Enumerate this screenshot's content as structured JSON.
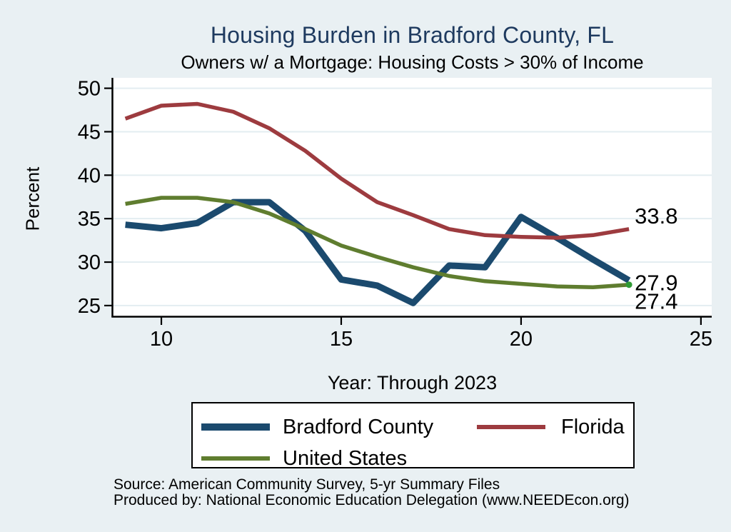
{
  "title": "Housing Burden in Bradford County, FL",
  "subtitle": "Owners w/ a Mortgage: Housing Costs > 30% of Income",
  "axis_titles": {
    "y": "Percent",
    "x": "Year: Through 2023"
  },
  "footer": {
    "source": "Source: American Community Survey, 5-yr Summary Files",
    "produced_by": "Produced by: National Economic Education Delegation (www.NEEDEcon.org)"
  },
  "colors": {
    "background": "#e9f0f3",
    "plot_background": "#ffffff",
    "gridline": "#e3edf1",
    "axis": "#000000",
    "title_text": "#1e3a5f",
    "bradford": "#1b4a6e",
    "florida": "#9d3b3f",
    "united_states": "#5f7d2f",
    "end_dot": "#2f9a35"
  },
  "legend": {
    "items": [
      {
        "label": "Bradford County",
        "color_key": "bradford",
        "swatch_thickness": 10
      },
      {
        "label": "Florida",
        "color_key": "florida",
        "swatch_thickness": 6
      },
      {
        "label": "United States",
        "color_key": "united_states",
        "swatch_thickness": 6
      }
    ]
  },
  "chart_data": {
    "type": "line",
    "title": "Housing Burden in Bradford County, FL",
    "subtitle": "Owners w/ a Mortgage: Housing Costs > 30% of Income",
    "xlabel": "Year: Through 2023",
    "ylabel": "Percent",
    "grid": "horizontal",
    "legend_position": "bottom",
    "years": [
      2009,
      2010,
      2011,
      2012,
      2013,
      2014,
      2015,
      2016,
      2017,
      2018,
      2019,
      2020,
      2021,
      2022,
      2023
    ],
    "x": [
      9,
      10,
      11,
      12,
      13,
      14,
      15,
      16,
      17,
      18,
      19,
      20,
      21,
      22,
      23
    ],
    "x_ticks": [
      10,
      15,
      20,
      25
    ],
    "x_tick_labels": [
      "10",
      "15",
      "20",
      "25"
    ],
    "y_ticks": [
      25,
      30,
      35,
      40,
      45,
      50
    ],
    "xlim": [
      8.65,
      25.3
    ],
    "ylim": [
      23.76,
      51.2
    ],
    "series": [
      {
        "name": "Bradford County",
        "color_key": "bradford",
        "line_width": 9,
        "values": [
          34.3,
          33.9,
          34.5,
          36.9,
          36.9,
          33.6,
          28.0,
          27.3,
          25.3,
          29.6,
          29.4,
          35.2,
          32.8,
          30.3,
          27.9
        ],
        "end_label": "27.9",
        "end_marker": false
      },
      {
        "name": "Florida",
        "color_key": "florida",
        "line_width": 5.5,
        "values": [
          46.5,
          48.0,
          48.2,
          47.3,
          45.4,
          42.8,
          39.6,
          36.9,
          35.4,
          33.8,
          33.1,
          32.9,
          32.8,
          33.1,
          33.8
        ],
        "end_label": "33.8",
        "end_marker": false
      },
      {
        "name": "United States",
        "color_key": "united_states",
        "line_width": 5.5,
        "values": [
          36.7,
          37.4,
          37.4,
          36.9,
          35.6,
          33.8,
          31.9,
          30.6,
          29.4,
          28.4,
          27.8,
          27.5,
          27.2,
          27.1,
          27.4
        ],
        "end_label": "27.4",
        "end_marker": true
      }
    ]
  }
}
